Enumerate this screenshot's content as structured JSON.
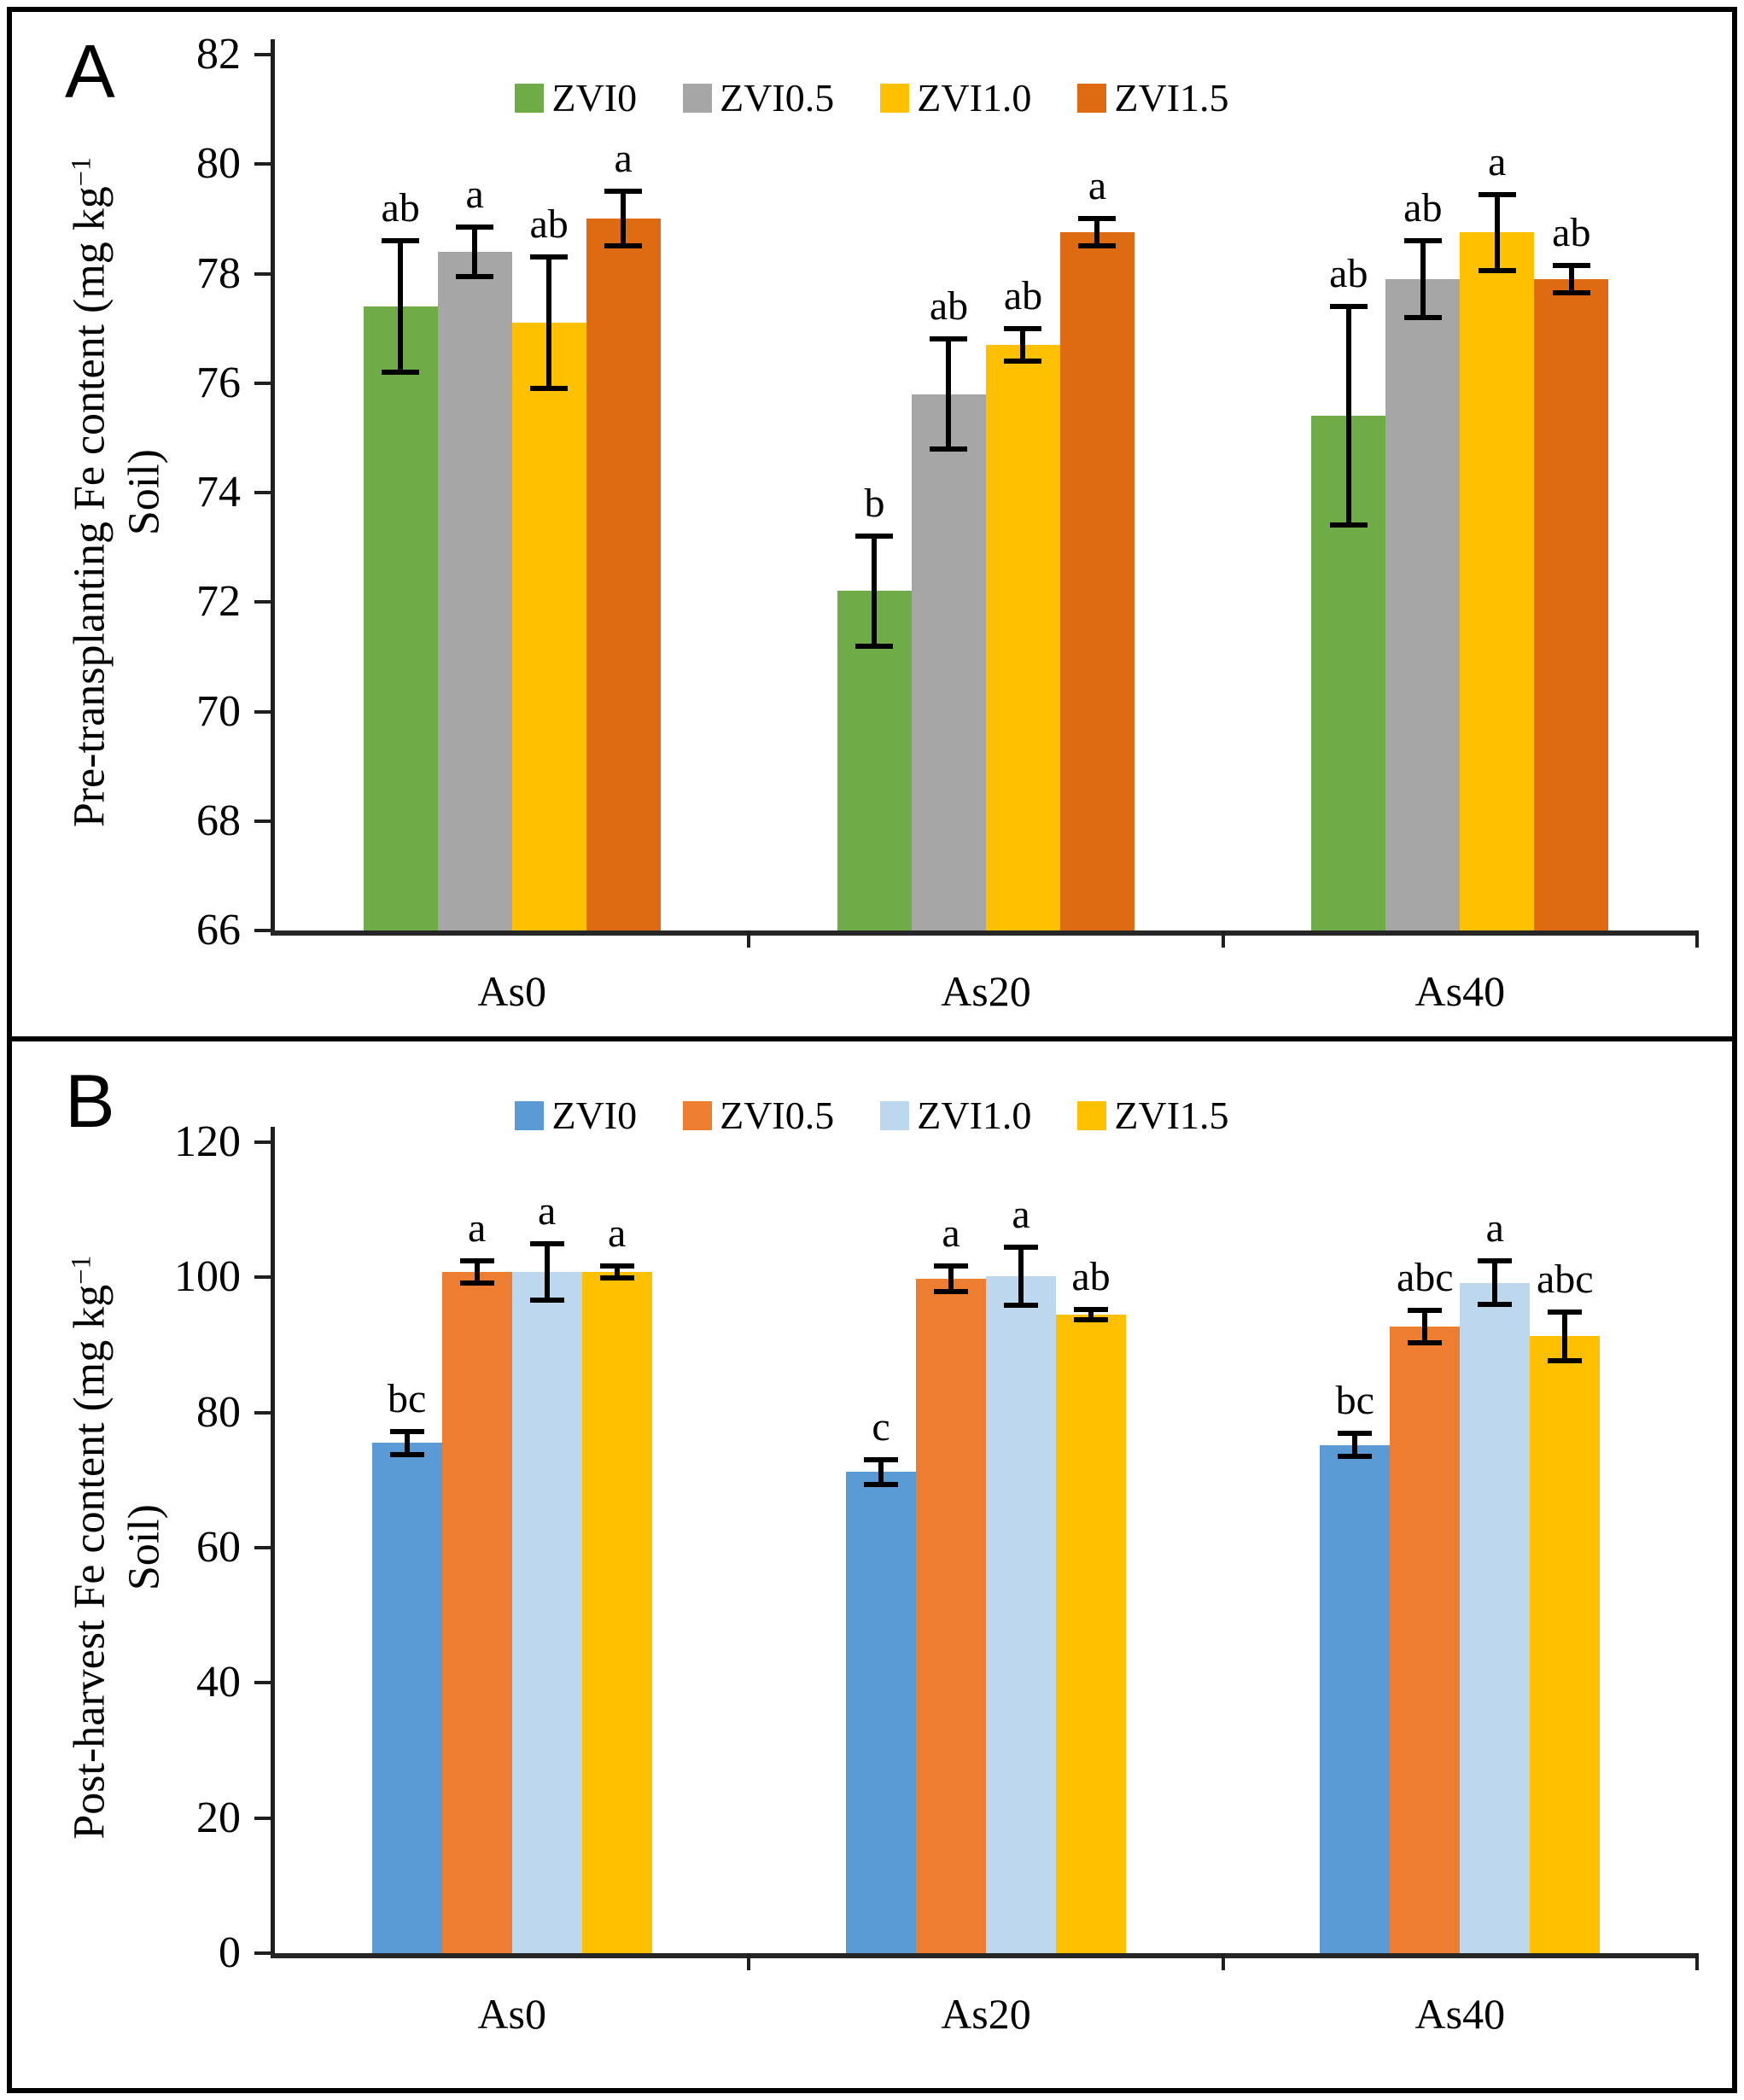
{
  "panels": [
    {
      "letter": "A",
      "ylabel": {
        "pre": "Pre-transplanting Fe content (mg kg",
        "sup": "−1",
        "line2": "Soil)"
      }
    },
    {
      "letter": "B",
      "ylabel": {
        "pre": "Post-harvest Fe content (mg kg",
        "sup": "−1",
        "line2": "Soil)"
      }
    }
  ],
  "chart_data": [
    {
      "type": "bar",
      "panel": "A",
      "ylabel": "Pre-transplanting Fe content (mg kg−1 Soil)",
      "categories": [
        "As0",
        "As20",
        "As40"
      ],
      "ylim": [
        66,
        82
      ],
      "ytick_step": 2,
      "grid": false,
      "legend_position": "top-center",
      "error_bars": true,
      "series": [
        {
          "name": "ZVI0",
          "color": "#6FAC47",
          "values": [
            77.4,
            72.2,
            75.4
          ],
          "errors": [
            1.2,
            1.0,
            2.0
          ],
          "letters": [
            "ab",
            "b",
            "ab"
          ]
        },
        {
          "name": "ZVI0.5",
          "color": "#A6A6A6",
          "values": [
            78.4,
            75.8,
            77.9
          ],
          "errors": [
            0.45,
            1.0,
            0.7
          ],
          "letters": [
            "a",
            "ab",
            "ab"
          ]
        },
        {
          "name": "ZVI1.0",
          "color": "#FFC000",
          "values": [
            77.1,
            76.7,
            78.75
          ],
          "errors": [
            1.2,
            0.3,
            0.7
          ],
          "letters": [
            "ab",
            "ab",
            "a"
          ]
        },
        {
          "name": "ZVI1.5",
          "color": "#DE6B11",
          "values": [
            79.0,
            78.75,
            77.9
          ],
          "errors": [
            0.5,
            0.25,
            0.25
          ],
          "letters": [
            "a",
            "a",
            "ab"
          ]
        }
      ]
    },
    {
      "type": "bar",
      "panel": "B",
      "ylabel": "Post-harvest Fe content (mg kg−1 Soil)",
      "categories": [
        "As0",
        "As20",
        "As40"
      ],
      "ylim": [
        0,
        120
      ],
      "ytick_step": 20,
      "grid": false,
      "legend_position": "top-center",
      "error_bars": true,
      "series": [
        {
          "name": "ZVI0",
          "color": "#5B9BD5",
          "values": [
            75.5,
            71.2,
            75.2
          ],
          "errors": [
            1.7,
            1.8,
            1.7
          ],
          "letters": [
            "bc",
            "c",
            "bc"
          ]
        },
        {
          "name": "ZVI0.5",
          "color": "#ED7D31",
          "values": [
            100.8,
            99.8,
            92.7
          ],
          "errors": [
            1.6,
            1.9,
            2.4
          ],
          "letters": [
            "a",
            "a",
            "abc"
          ]
        },
        {
          "name": "ZVI1.0",
          "color": "#BDD7EE",
          "values": [
            100.8,
            100.2,
            99.2
          ],
          "errors": [
            4.2,
            4.3,
            3.2
          ],
          "letters": [
            "a",
            "a",
            "a"
          ]
        },
        {
          "name": "ZVI1.5",
          "color": "#FFC000",
          "values": [
            100.8,
            94.5,
            91.3
          ],
          "errors": [
            0.9,
            0.8,
            3.6
          ],
          "letters": [
            "a",
            "ab",
            "abc"
          ]
        }
      ]
    }
  ]
}
